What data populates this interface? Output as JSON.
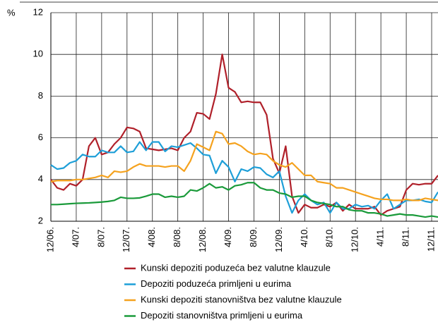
{
  "chart_data": {
    "type": "line",
    "y_label": "%",
    "categories": [
      "12/06.",
      null,
      null,
      null,
      "4/07.",
      null,
      null,
      null,
      "8/07.",
      null,
      null,
      null,
      "12/07.",
      null,
      null,
      null,
      "4/08.",
      null,
      null,
      null,
      "8/08.",
      null,
      null,
      null,
      "12/08.",
      null,
      null,
      null,
      "4/09.",
      null,
      null,
      null,
      "8/09.",
      null,
      null,
      null,
      "12/09.",
      null,
      null,
      null,
      "4/10.",
      null,
      null,
      null,
      "8/10.",
      null,
      null,
      null,
      "12/10.",
      null,
      null,
      null,
      "4/11.",
      null,
      null,
      null,
      "8/11.",
      null,
      null,
      null,
      "12/11.",
      null
    ],
    "ylim": [
      2,
      12
    ],
    "yticks": [
      2,
      4,
      6,
      8,
      10,
      12
    ],
    "grid": true,
    "series": [
      {
        "name": "Kunski depoziti poduzeća bez valutne klauzule",
        "color": "#b0202a",
        "values": [
          4.0,
          3.6,
          3.5,
          3.8,
          3.7,
          4.0,
          5.6,
          6.0,
          5.2,
          5.3,
          5.7,
          6.0,
          6.5,
          6.45,
          6.3,
          5.5,
          5.45,
          5.4,
          5.45,
          5.5,
          5.4,
          6.0,
          6.3,
          7.2,
          7.15,
          6.9,
          8.1,
          10.0,
          8.4,
          8.2,
          7.7,
          7.75,
          7.7,
          7.7,
          7.1,
          5.0,
          4.3,
          5.6,
          3.2,
          2.4,
          2.8,
          2.65,
          2.65,
          2.8,
          2.7,
          2.9,
          2.5,
          2.8,
          2.6,
          2.6,
          2.6,
          2.7,
          2.3,
          2.5,
          2.6,
          2.7,
          3.5,
          3.8,
          3.75,
          3.8,
          3.8,
          4.2
        ]
      },
      {
        "name": "Depoziti poduzeća primljeni u eurima",
        "color": "#1e9fd8",
        "values": [
          4.7,
          4.5,
          4.55,
          4.8,
          4.9,
          5.2,
          5.1,
          5.1,
          5.4,
          5.3,
          5.3,
          5.6,
          5.3,
          5.35,
          5.8,
          5.4,
          5.8,
          5.8,
          5.35,
          5.6,
          5.55,
          5.65,
          5.75,
          5.5,
          5.2,
          5.15,
          4.3,
          4.9,
          4.6,
          3.9,
          4.5,
          4.4,
          4.6,
          4.55,
          4.25,
          4.1,
          4.4,
          3.2,
          2.4,
          3.0,
          3.3,
          3.0,
          2.8,
          2.9,
          2.4,
          2.9,
          2.6,
          2.6,
          2.8,
          2.7,
          2.75,
          2.6,
          3.0,
          3.3,
          2.6,
          2.8,
          3.0,
          3.0,
          3.05,
          2.95,
          2.9,
          3.4
        ]
      },
      {
        "name": "Kunski depoziti stanovništva bez valutne klauzule",
        "color": "#f5a21e",
        "values": [
          3.9,
          3.95,
          3.95,
          3.95,
          4.0,
          4.0,
          4.05,
          4.1,
          4.2,
          4.1,
          4.4,
          4.35,
          4.4,
          4.6,
          4.75,
          4.65,
          4.65,
          4.65,
          4.6,
          4.65,
          4.65,
          4.4,
          4.9,
          5.7,
          5.55,
          5.4,
          6.3,
          6.2,
          5.7,
          5.75,
          5.6,
          5.35,
          5.2,
          5.25,
          5.2,
          4.9,
          4.7,
          4.6,
          4.8,
          4.5,
          4.2,
          4.2,
          3.9,
          3.85,
          3.8,
          3.6,
          3.6,
          3.5,
          3.4,
          3.3,
          3.2,
          3.1,
          3.05,
          3.05,
          3.0,
          3.0,
          3.05,
          3.0,
          3.0,
          3.1,
          3.05,
          3.0
        ]
      },
      {
        "name": "Depoziti stanovništva primljeni u eurima",
        "color": "#1a9a3a",
        "values": [
          2.8,
          2.8,
          2.82,
          2.84,
          2.86,
          2.87,
          2.88,
          2.9,
          2.92,
          2.95,
          3.0,
          3.15,
          3.1,
          3.1,
          3.12,
          3.2,
          3.3,
          3.3,
          3.15,
          3.2,
          3.15,
          3.2,
          3.5,
          3.45,
          3.6,
          3.8,
          3.6,
          3.65,
          3.5,
          3.7,
          3.75,
          3.85,
          3.85,
          3.6,
          3.5,
          3.5,
          3.35,
          3.3,
          3.15,
          3.2,
          3.2,
          3.0,
          2.9,
          2.85,
          2.8,
          2.7,
          2.7,
          2.55,
          2.5,
          2.5,
          2.4,
          2.4,
          2.35,
          2.25,
          2.3,
          2.35,
          2.3,
          2.3,
          2.25,
          2.2,
          2.25,
          2.2
        ]
      }
    ]
  }
}
